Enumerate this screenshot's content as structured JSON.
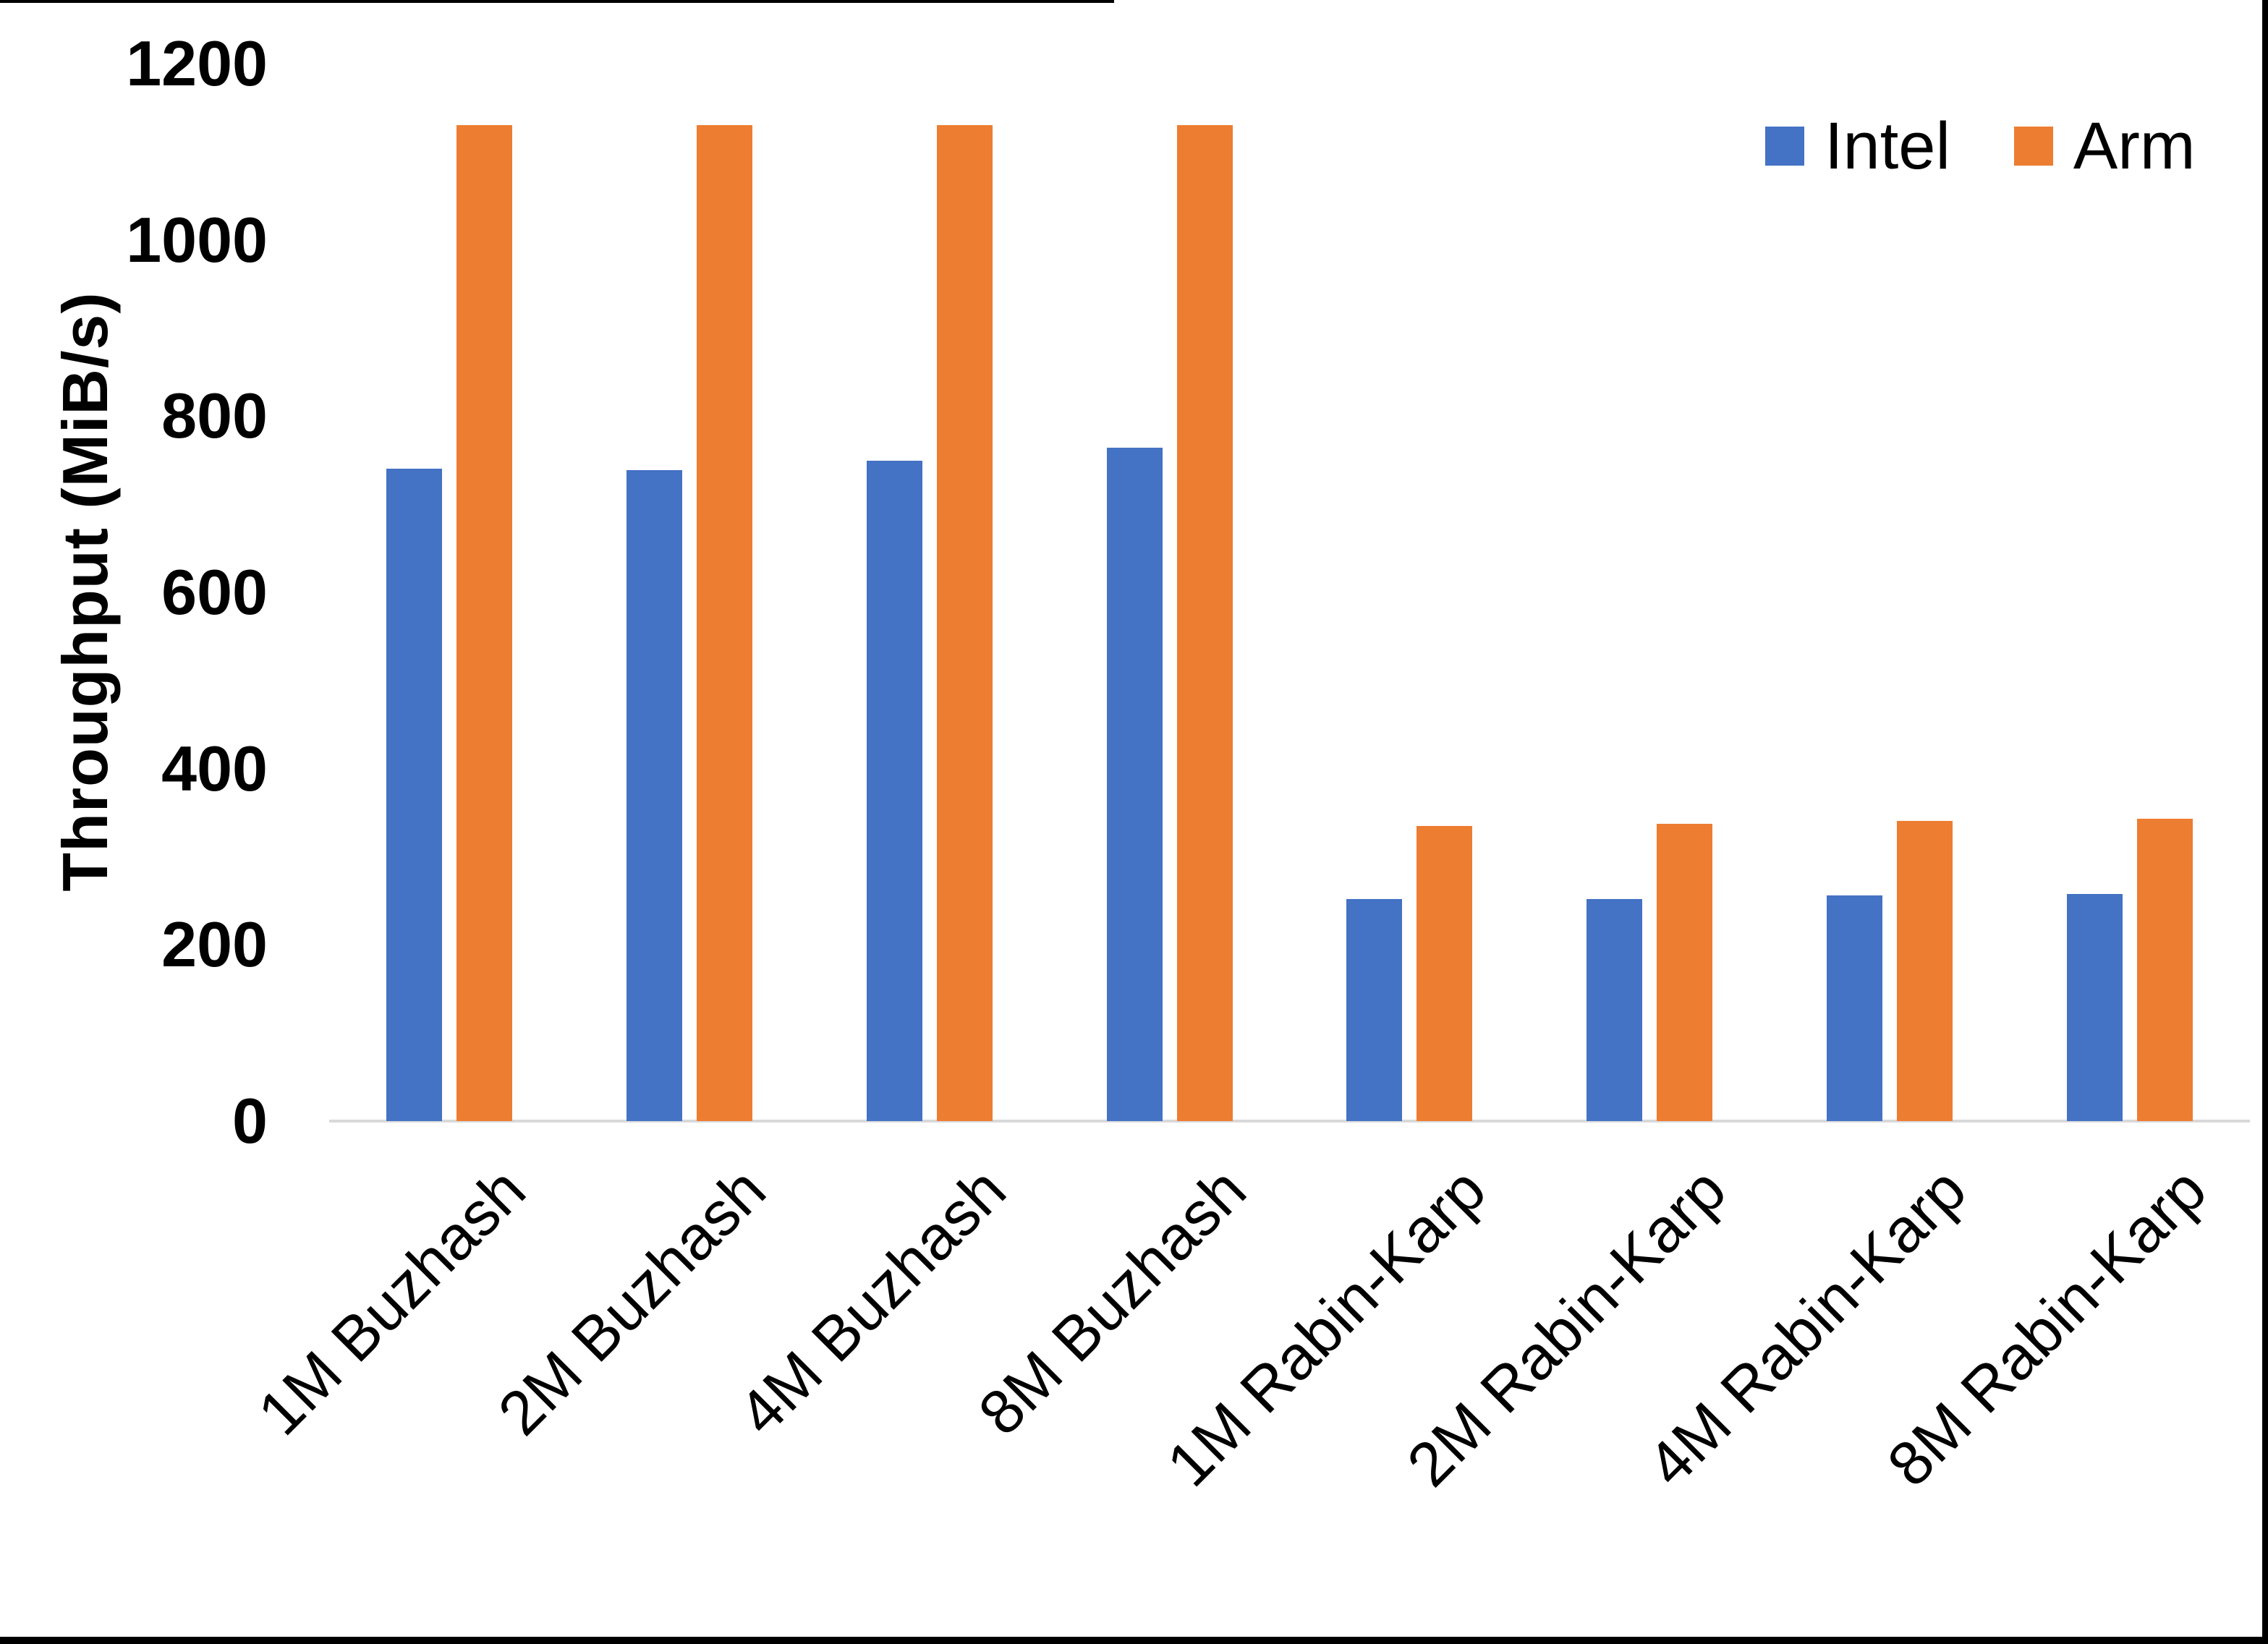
{
  "chart_data": {
    "type": "bar",
    "title": "",
    "xlabel": "",
    "ylabel": "Throughput (MiB/s)",
    "ylim": [
      0,
      1200
    ],
    "ytick_interval": 200,
    "yticks": [
      0,
      200,
      400,
      600,
      800,
      1000,
      1200
    ],
    "grid": false,
    "legend_position": "top-right",
    "categories": [
      "1M Buzhash",
      "2M Buzhash",
      "4M Buzhash",
      "8M Buzhash",
      "1M Rabin-Karp",
      "2M Rabin-Karp",
      "4M Rabin-Karp",
      "8M Rabin-Karp"
    ],
    "series": [
      {
        "name": "Intel",
        "color": "#4472C4",
        "values": [
          740,
          739,
          749,
          764,
          252,
          252,
          256,
          258
        ]
      },
      {
        "name": "Arm",
        "color": "#ED7D31",
        "values": [
          1130,
          1130,
          1130,
          1130,
          335,
          337,
          341,
          343
        ]
      }
    ],
    "axis_line_color": "#D9D9D9",
    "text_color": "#000000",
    "background_color": "#FFFFFF"
  }
}
